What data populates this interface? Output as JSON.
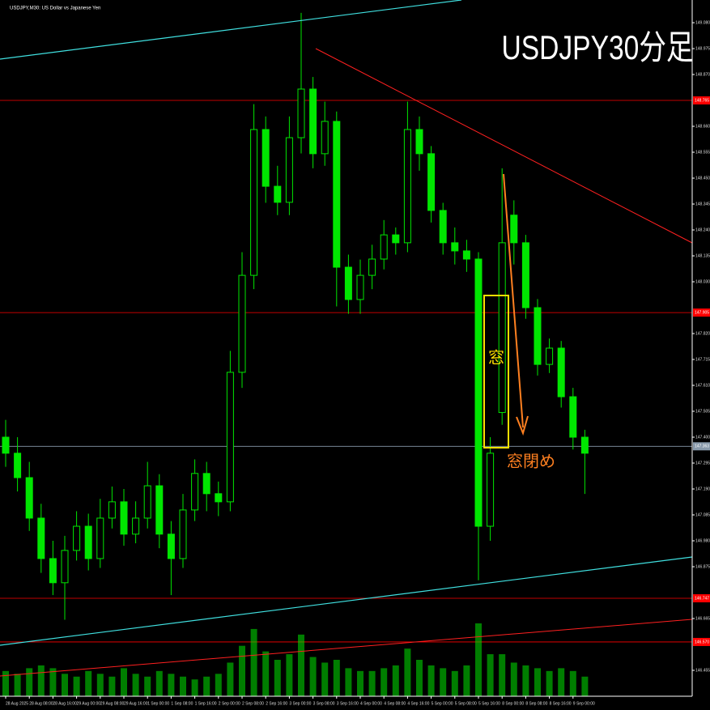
{
  "chart_data": {
    "type": "candlestick",
    "header": "USDJPY,M30: US Dollar vs Japanese Yen",
    "title": "USDJPY30分足",
    "annotations": [
      "窓",
      "窓閉め"
    ],
    "color": "#00e600",
    "categories": [
      "28 Aug 2025",
      null,
      "28 Aug 08:00",
      null,
      "28 Aug 16:00",
      null,
      "29 Aug 00:00",
      null,
      "29 Aug 08:00",
      null,
      "29 Aug 16:00",
      null,
      "1 Sep 00:00",
      null,
      "1 Sep 08:00",
      null,
      "1 Sep 16:00",
      null,
      "2 Sep 00:00",
      null,
      "2 Sep 08:00",
      null,
      "2 Sep 16:00",
      null,
      "3 Sep 00:00",
      null,
      "3 Sep 08:00",
      null,
      "3 Sep 16:00",
      null,
      "4 Sep 00:00",
      null,
      "4 Sep 08:00",
      null,
      "4 Sep 16:00",
      null,
      "5 Sep 00:00",
      null,
      "5 Sep 08:00",
      null,
      "5 Sep 16:00",
      null,
      "8 Sep 00:00",
      null,
      "8 Sep 08:00",
      null,
      "8 Sep 16:00",
      null,
      "9 Sep 00:00",
      null
    ],
    "open": [
      147.4,
      147.335,
      147.236,
      147.072,
      146.908,
      146.81,
      146.941,
      147.039,
      146.908,
      147.072,
      147.138,
      147.007,
      147.072,
      147.203,
      147.007,
      146.908,
      147.105,
      147.253,
      147.171,
      147.138,
      147.663,
      148.056,
      148.647,
      148.417,
      148.352,
      148.614,
      148.811,
      148.549,
      148.68,
      148.089,
      147.958,
      148.056,
      148.122,
      148.22,
      148.188,
      148.647,
      148.549,
      148.319,
      148.188,
      148.155,
      148.122,
      147.039,
      147.5,
      148.3,
      148.188,
      147.925,
      147.695,
      147.761,
      147.564,
      147.4
    ],
    "high": [
      147.47,
      147.4,
      147.3,
      147.13,
      146.98,
      147.0,
      147.1,
      147.09,
      147.15,
      147.2,
      147.19,
      147.14,
      147.3,
      147.25,
      147.06,
      147.17,
      147.31,
      147.3,
      147.22,
      147.75,
      148.15,
      148.75,
      148.7,
      148.5,
      148.7,
      149.12,
      148.86,
      148.76,
      148.72,
      148.14,
      148.12,
      148.18,
      148.28,
      148.25,
      148.76,
      148.7,
      148.58,
      148.35,
      148.25,
      148.2,
      148.15,
      147.4,
      148.49,
      148.36,
      148.22,
      147.96,
      147.8,
      147.79,
      147.6,
      147.43
    ],
    "low": [
      147.28,
      147.18,
      147.02,
      146.85,
      146.76,
      146.66,
      146.9,
      146.86,
      146.87,
      147.03,
      146.96,
      146.97,
      147.03,
      146.95,
      146.76,
      146.87,
      147.06,
      147.1,
      147.08,
      147.1,
      147.6,
      148.0,
      148.35,
      148.3,
      148.3,
      148.55,
      148.49,
      148.5,
      147.93,
      147.9,
      147.9,
      148.0,
      148.08,
      148.14,
      148.15,
      148.48,
      148.27,
      148.14,
      148.1,
      148.07,
      146.82,
      146.98,
      147.45,
      148.1,
      147.88,
      147.65,
      147.66,
      147.52,
      147.35,
      147.17
    ],
    "close": [
      147.335,
      147.236,
      147.072,
      146.908,
      146.81,
      146.941,
      147.039,
      146.908,
      147.072,
      147.138,
      147.007,
      147.072,
      147.203,
      147.007,
      146.908,
      147.105,
      147.253,
      147.171,
      147.138,
      147.663,
      148.056,
      148.647,
      148.417,
      148.352,
      148.614,
      148.811,
      148.549,
      148.68,
      148.089,
      147.958,
      148.056,
      148.122,
      148.22,
      148.188,
      148.647,
      148.549,
      148.319,
      148.188,
      148.155,
      148.122,
      147.039,
      147.335,
      148.188,
      148.188,
      147.925,
      147.695,
      147.761,
      147.564,
      147.4,
      147.335
    ],
    "volume": [
      900,
      800,
      1000,
      1100,
      1000,
      800,
      700,
      900,
      800,
      700,
      1000,
      800,
      700,
      900,
      800,
      700,
      600,
      700,
      800,
      1200,
      1800,
      2400,
      1600,
      1300,
      1500,
      2200,
      1400,
      1200,
      1300,
      1000,
      900,
      900,
      1000,
      1100,
      1700,
      1300,
      1100,
      1000,
      900,
      1100,
      2600,
      1500,
      1500,
      1200,
      1100,
      1000,
      900,
      1000,
      900,
      700
    ],
    "ylim": [
      146.35,
      149.172
    ],
    "yticks": [
      {
        "value": 149.08,
        "label": "149.080"
      },
      {
        "value": 148.975,
        "label": "148.975"
      },
      {
        "value": 148.87,
        "label": "148.870"
      },
      {
        "value": 148.66,
        "label": "148.660"
      },
      {
        "value": 148.555,
        "label": "148.555"
      },
      {
        "value": 148.45,
        "label": "148.450"
      },
      {
        "value": 148.345,
        "label": "148.345"
      },
      {
        "value": 148.24,
        "label": "148.240"
      },
      {
        "value": 148.135,
        "label": "148.135"
      },
      {
        "value": 148.03,
        "label": "148.030"
      },
      {
        "value": 147.82,
        "label": "147.820"
      },
      {
        "value": 147.715,
        "label": "147.715"
      },
      {
        "value": 147.61,
        "label": "147.610"
      },
      {
        "value": 147.505,
        "label": "147.505"
      },
      {
        "value": 147.4,
        "label": "147.400"
      },
      {
        "value": 147.295,
        "label": "147.295"
      },
      {
        "value": 147.19,
        "label": "147.190"
      },
      {
        "value": 147.085,
        "label": "147.085"
      },
      {
        "value": 146.98,
        "label": "146.980"
      },
      {
        "value": 146.875,
        "label": "146.875"
      },
      {
        "value": 146.665,
        "label": "146.665"
      },
      {
        "value": 146.455,
        "label": "146.455"
      }
    ],
    "levels": [
      {
        "value": 148.765,
        "label": "148.765",
        "color": "#ff0000"
      },
      {
        "value": 147.905,
        "label": "147.905",
        "color": "#ff0000"
      },
      {
        "value": 147.363,
        "label": "147.363",
        "color": "#8899aa"
      },
      {
        "value": 146.747,
        "label": "146.747",
        "color": "#ff0000"
      },
      {
        "value": 146.57,
        "label": "146.570",
        "color": "#ff0000"
      }
    ]
  }
}
